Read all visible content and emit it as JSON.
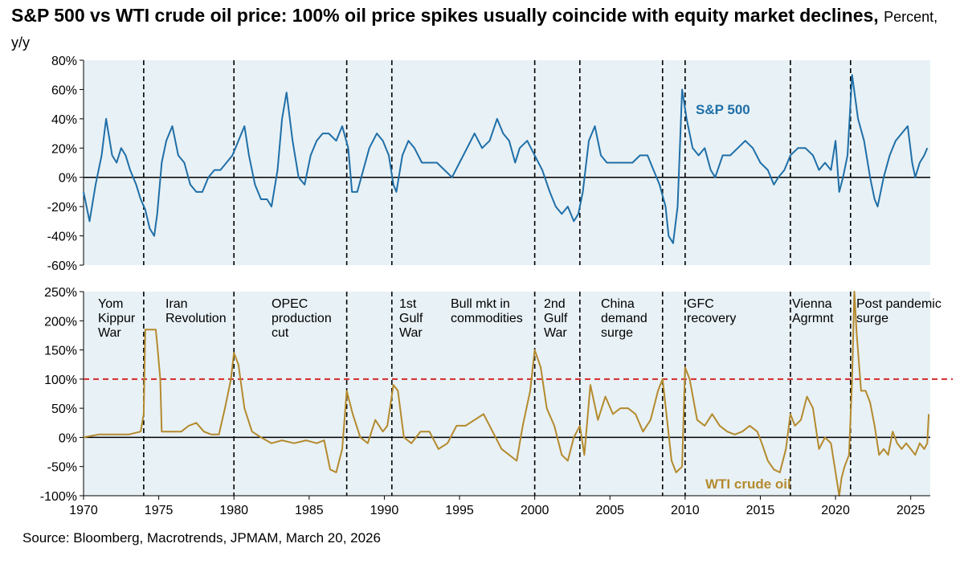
{
  "title": {
    "bold": "S&P 500 vs WTI crude oil price: 100% oil price spikes usually coincide with equity market declines,",
    "subtitle": "Percent, y/y"
  },
  "source": "Source: Bloomberg,  Macrotrends,  JPMAM, March 20, 2026",
  "colors": {
    "panel_bg": "#e8f1f5",
    "sp500": "#1f6fa8",
    "wti": "#b48a2e",
    "threshold": "#d42a2a",
    "event_line": "#000000",
    "axis": "#000000"
  },
  "chart_data": [
    {
      "type": "line",
      "panel": "top",
      "series_name": "S&P 500",
      "ylabel": "Percent, y/y",
      "ylim": [
        -60,
        80
      ],
      "yticks": [
        -60,
        -40,
        -20,
        0,
        20,
        40,
        60,
        80
      ],
      "ytick_labels": [
        "-60%",
        "-40%",
        "-20%",
        "0%",
        "20%",
        "40%",
        "60%",
        "80%"
      ],
      "xlim": [
        1970,
        2026.3
      ],
      "series": [
        {
          "name": "S&P 500",
          "x": [
            1970.0,
            1970.4,
            1970.8,
            1971.2,
            1971.5,
            1971.9,
            1972.2,
            1972.5,
            1972.8,
            1973.1,
            1973.5,
            1973.8,
            1974.1,
            1974.4,
            1974.7,
            1974.9,
            1975.2,
            1975.5,
            1975.9,
            1976.3,
            1976.7,
            1977.1,
            1977.5,
            1977.9,
            1978.3,
            1978.7,
            1979.1,
            1979.5,
            1979.9,
            1980.3,
            1980.7,
            1981.0,
            1981.4,
            1981.8,
            1982.2,
            1982.5,
            1982.9,
            1983.2,
            1983.5,
            1983.9,
            1984.3,
            1984.7,
            1985.1,
            1985.5,
            1985.9,
            1986.3,
            1986.8,
            1987.2,
            1987.6,
            1987.85,
            1988.2,
            1988.6,
            1989.0,
            1989.5,
            1989.9,
            1990.3,
            1990.6,
            1990.8,
            1991.2,
            1991.6,
            1992.0,
            1992.5,
            1993.0,
            1993.5,
            1994.0,
            1994.5,
            1995.0,
            1995.5,
            1996.0,
            1996.5,
            1997.0,
            1997.5,
            1997.9,
            1998.3,
            1998.7,
            1999.0,
            1999.5,
            2000.0,
            2000.5,
            2001.0,
            2001.4,
            2001.8,
            2002.2,
            2002.6,
            2002.9,
            2003.2,
            2003.6,
            2004.0,
            2004.4,
            2004.8,
            2005.2,
            2005.6,
            2006.0,
            2006.5,
            2007.0,
            2007.5,
            2007.9,
            2008.3,
            2008.7,
            2008.9,
            2009.2,
            2009.5,
            2009.8,
            2010.1,
            2010.5,
            2010.9,
            2011.3,
            2011.7,
            2012.0,
            2012.5,
            2013.0,
            2013.5,
            2014.0,
            2014.5,
            2015.0,
            2015.5,
            2015.9,
            2016.2,
            2016.6,
            2017.0,
            2017.5,
            2018.0,
            2018.5,
            2018.9,
            2019.3,
            2019.7,
            2020.0,
            2020.25,
            2020.5,
            2020.8,
            2021.1,
            2021.5,
            2021.9,
            2022.3,
            2022.6,
            2022.8,
            2023.2,
            2023.6,
            2024.0,
            2024.4,
            2024.8,
            2025.1,
            2025.3,
            2025.6,
            2025.9,
            2026.1
          ],
          "y": [
            -10,
            -30,
            -5,
            15,
            40,
            15,
            10,
            20,
            15,
            5,
            -5,
            -15,
            -22,
            -35,
            -40,
            -25,
            10,
            25,
            35,
            15,
            10,
            -5,
            -10,
            -10,
            0,
            5,
            5,
            10,
            15,
            25,
            35,
            15,
            -5,
            -15,
            -15,
            -20,
            5,
            40,
            58,
            25,
            0,
            -5,
            15,
            25,
            30,
            30,
            25,
            35,
            20,
            -10,
            -10,
            5,
            20,
            30,
            25,
            15,
            -5,
            -10,
            15,
            25,
            20,
            10,
            10,
            10,
            5,
            0,
            10,
            20,
            30,
            20,
            25,
            40,
            30,
            25,
            10,
            20,
            25,
            15,
            5,
            -10,
            -20,
            -25,
            -20,
            -30,
            -25,
            -10,
            25,
            35,
            15,
            10,
            10,
            10,
            10,
            10,
            15,
            15,
            5,
            -5,
            -20,
            -40,
            -45,
            -20,
            60,
            40,
            20,
            15,
            20,
            5,
            0,
            15,
            15,
            20,
            25,
            20,
            10,
            5,
            -5,
            0,
            5,
            15,
            20,
            20,
            15,
            5,
            10,
            5,
            25,
            -10,
            0,
            15,
            70,
            40,
            25,
            0,
            -15,
            -20,
            0,
            15,
            25,
            30,
            35,
            10,
            0,
            10,
            15,
            20
          ]
        }
      ],
      "series_label": "S&P 500"
    },
    {
      "type": "line",
      "panel": "bottom",
      "series_name": "WTI crude oil",
      "ylim": [
        -100,
        250
      ],
      "yticks": [
        -100,
        -50,
        0,
        50,
        100,
        150,
        200,
        250
      ],
      "ytick_labels": [
        "-100%",
        "-50%",
        "0%",
        "50%",
        "100%",
        "150%",
        "200%",
        "250%"
      ],
      "xlim": [
        1970,
        2026.3
      ],
      "xticks": [
        1970,
        1975,
        1980,
        1985,
        1990,
        1995,
        2000,
        2005,
        2010,
        2015,
        2020,
        2025
      ],
      "xtick_labels": [
        "1970",
        "1975",
        "1980",
        "1985",
        "1990",
        "1995",
        "2000",
        "2005",
        "2010",
        "2015",
        "2020",
        "2025"
      ],
      "threshold": 100,
      "series": [
        {
          "name": "WTI crude oil",
          "x": [
            1970.0,
            1971.0,
            1972.0,
            1973.0,
            1973.8,
            1974.0,
            1974.1,
            1974.8,
            1974.9,
            1975.1,
            1975.2,
            1975.3,
            1976.0,
            1976.5,
            1977.0,
            1977.5,
            1978.0,
            1978.5,
            1979.0,
            1979.4,
            1979.8,
            1980.0,
            1980.3,
            1980.7,
            1981.2,
            1981.8,
            1982.5,
            1983.2,
            1984.0,
            1984.8,
            1985.5,
            1986.0,
            1986.4,
            1986.8,
            1987.2,
            1987.5,
            1987.9,
            1988.4,
            1988.9,
            1989.4,
            1989.9,
            1990.2,
            1990.6,
            1990.9,
            1991.3,
            1991.8,
            1992.4,
            1993.0,
            1993.6,
            1994.2,
            1994.8,
            1995.4,
            1996.0,
            1996.6,
            1997.2,
            1997.8,
            1998.3,
            1998.8,
            1999.2,
            1999.7,
            2000.0,
            2000.4,
            2000.8,
            2001.3,
            2001.8,
            2002.2,
            2002.6,
            2003.0,
            2003.3,
            2003.7,
            2004.2,
            2004.7,
            2005.2,
            2005.7,
            2006.2,
            2006.7,
            2007.2,
            2007.7,
            2008.2,
            2008.5,
            2008.8,
            2009.1,
            2009.4,
            2009.8,
            2010.0,
            2010.3,
            2010.8,
            2011.3,
            2011.8,
            2012.3,
            2012.8,
            2013.3,
            2013.8,
            2014.3,
            2014.8,
            2015.1,
            2015.5,
            2015.9,
            2016.3,
            2016.7,
            2017.0,
            2017.3,
            2017.7,
            2018.1,
            2018.5,
            2018.9,
            2019.3,
            2019.7,
            2020.0,
            2020.25,
            2020.4,
            2020.6,
            2020.9,
            2021.1,
            2021.25,
            2021.4,
            2021.7,
            2022.0,
            2022.3,
            2022.6,
            2022.9,
            2023.2,
            2023.5,
            2023.8,
            2024.1,
            2024.4,
            2024.7,
            2025.0,
            2025.3,
            2025.6,
            2025.9,
            2026.1,
            2026.2
          ],
          "y": [
            0,
            5,
            5,
            5,
            10,
            40,
            185,
            185,
            160,
            100,
            10,
            10,
            10,
            10,
            20,
            25,
            10,
            5,
            5,
            50,
            100,
            145,
            125,
            50,
            10,
            0,
            -10,
            -5,
            -10,
            -5,
            -10,
            -5,
            -55,
            -60,
            -20,
            80,
            40,
            0,
            -10,
            30,
            10,
            20,
            90,
            80,
            0,
            -10,
            10,
            10,
            -20,
            -10,
            20,
            20,
            30,
            40,
            10,
            -20,
            -30,
            -40,
            20,
            80,
            150,
            120,
            50,
            20,
            -30,
            -40,
            0,
            20,
            -30,
            90,
            30,
            70,
            40,
            50,
            50,
            40,
            10,
            30,
            80,
            100,
            30,
            -40,
            -60,
            -50,
            120,
            100,
            30,
            20,
            40,
            20,
            10,
            5,
            10,
            20,
            10,
            -10,
            -40,
            -55,
            -60,
            -20,
            40,
            20,
            30,
            70,
            50,
            -20,
            0,
            -10,
            -60,
            -100,
            -70,
            -50,
            -30,
            100,
            250,
            180,
            80,
            80,
            60,
            20,
            -30,
            -20,
            -30,
            10,
            -10,
            -20,
            -10,
            -20,
            -30,
            -10,
            -20,
            -10,
            40
          ]
        }
      ],
      "series_label": "WTI crude oil"
    }
  ],
  "events": [
    {
      "x": 1974.0,
      "label": [
        "Yom",
        "Kippur",
        "War"
      ]
    },
    {
      "x": 1980.0,
      "label": [
        "Iran",
        "Revolution"
      ]
    },
    {
      "x": 1987.5,
      "label": [
        "OPEC",
        "production",
        "cut"
      ]
    },
    {
      "x": 1990.5,
      "label": [
        "1st",
        "Gulf",
        "War"
      ]
    },
    {
      "x": 2000.0,
      "label": [
        "Bull mkt in",
        "commodities"
      ]
    },
    {
      "x": 2003.0,
      "label": [
        "2nd",
        "Gulf",
        "War"
      ]
    },
    {
      "x": 2008.5,
      "label": [
        "China",
        "demand",
        "surge"
      ]
    },
    {
      "x": 2010.0,
      "label": [
        "GFC",
        "recovery"
      ]
    },
    {
      "x": 2017.0,
      "label": [
        "Vienna",
        "Agrmnt"
      ]
    },
    {
      "x": 2021.0,
      "label": [
        "Post pandemic",
        "surge"
      ]
    }
  ]
}
